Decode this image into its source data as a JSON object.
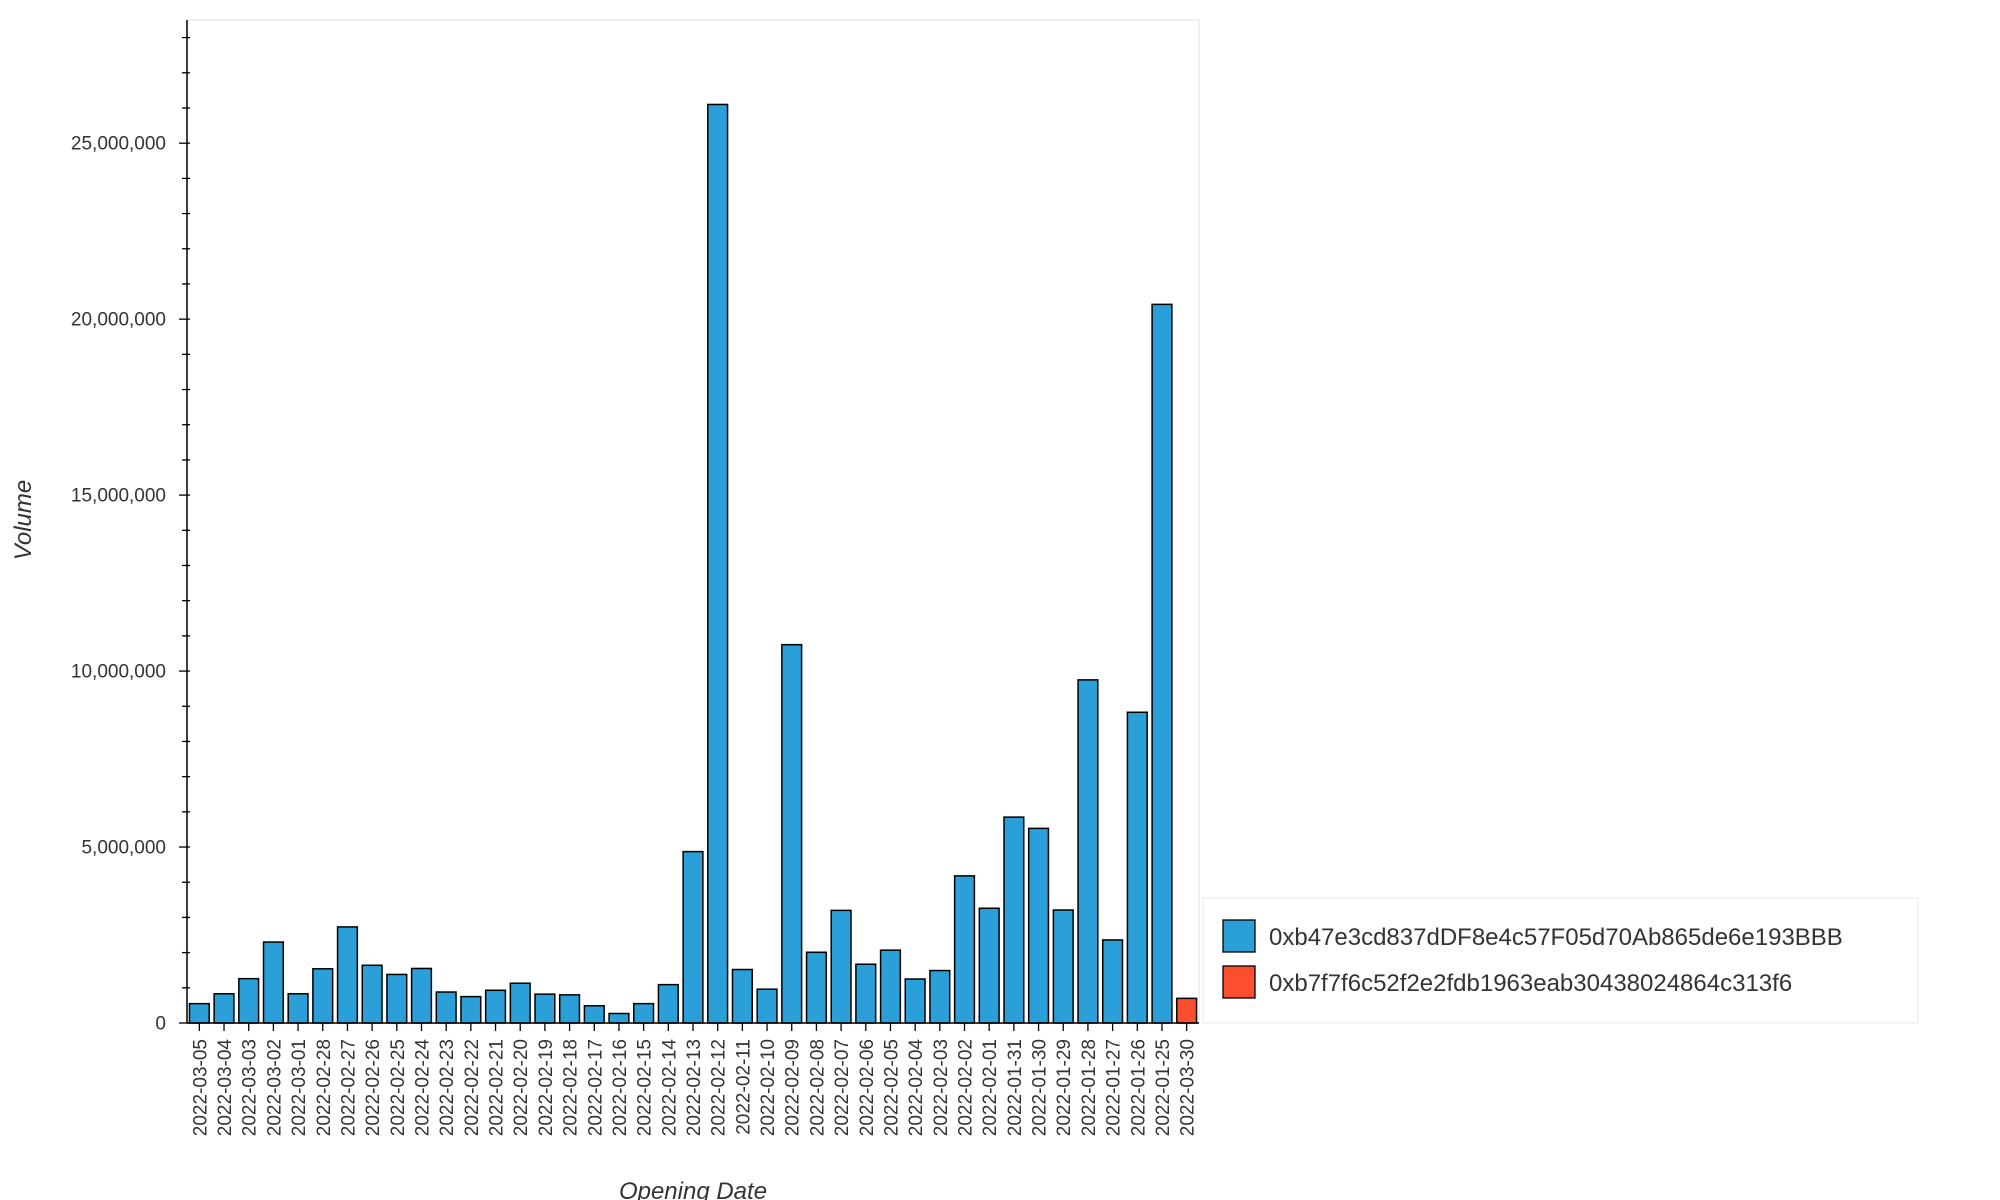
{
  "chart_data": {
    "type": "bar",
    "xlabel": "Opening Date",
    "ylabel": "Volume",
    "ylim": [
      0,
      28500000
    ],
    "y_ticks": [
      0,
      5000000,
      10000000,
      15000000,
      20000000,
      25000000
    ],
    "y_tick_labels": [
      "0",
      "5,000,000",
      "10,000,000",
      "15,000,000",
      "20,000,000",
      "25,000,000"
    ],
    "grid": false,
    "legend_position": "bottom-right, outside plot",
    "categories": [
      "2022-03-05",
      "2022-03-04",
      "2022-03-03",
      "2022-03-02",
      "2022-03-01",
      "2022-02-28",
      "2022-02-27",
      "2022-02-26",
      "2022-02-25",
      "2022-02-24",
      "2022-02-23",
      "2022-02-22",
      "2022-02-21",
      "2022-02-20",
      "2022-02-19",
      "2022-02-18",
      "2022-02-17",
      "2022-02-16",
      "2022-02-15",
      "2022-02-14",
      "2022-02-13",
      "2022-02-12",
      "2022-02-11",
      "2022-02-10",
      "2022-02-09",
      "2022-02-08",
      "2022-02-07",
      "2022-02-06",
      "2022-02-05",
      "2022-02-04",
      "2022-02-03",
      "2022-02-02",
      "2022-02-01",
      "2022-01-31",
      "2022-01-30",
      "2022-01-29",
      "2022-01-28",
      "2022-01-27",
      "2022-01-26",
      "2022-01-25",
      "2022-03-30"
    ],
    "series": [
      {
        "name": "0xb47e3cd837dDF8e4c57F05d70Ab865de6e193BBB",
        "color": "#2b9fd8",
        "values": [
          550000,
          830000,
          1260000,
          2300000,
          830000,
          1540000,
          2730000,
          1640000,
          1380000,
          1550000,
          880000,
          750000,
          930000,
          1130000,
          820000,
          800000,
          490000,
          270000,
          550000,
          1090000,
          4870000,
          26100000,
          1520000,
          960000,
          10750000,
          2010000,
          3200000,
          1670000,
          2070000,
          1250000,
          1490000,
          4180000,
          3260000,
          5850000,
          5530000,
          3210000,
          9750000,
          2360000,
          8830000,
          20420000,
          null
        ]
      },
      {
        "name": "0xb7f7f6c52f2e2fdb1963eab30438024864c313f6",
        "color": "#fc4f30",
        "values": [
          null,
          null,
          null,
          null,
          null,
          null,
          null,
          null,
          null,
          null,
          null,
          null,
          null,
          null,
          null,
          null,
          null,
          null,
          null,
          null,
          null,
          null,
          null,
          null,
          null,
          null,
          null,
          null,
          null,
          null,
          null,
          null,
          null,
          null,
          null,
          null,
          null,
          null,
          null,
          null,
          700000
        ]
      }
    ]
  }
}
